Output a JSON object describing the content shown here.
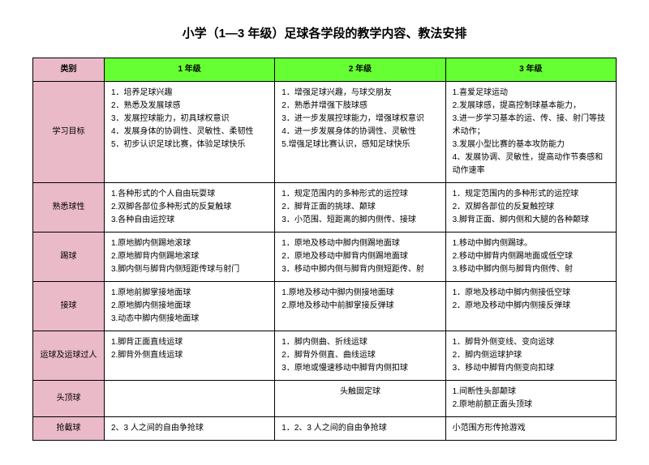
{
  "title": "小学（1—3 年级）足球各学段的教学内容、教法安排",
  "headers": {
    "category": "类别",
    "grade1": "1 年级",
    "grade2": "2 年级",
    "grade3": "3 年级"
  },
  "rows": {
    "goals": {
      "label": "学习目标",
      "g1": "1．培养足球兴趣\n2．熟悉及发展球感\n3．发展控球能力，初具球权意识\n4．发展身体的协调性、灵敏性、柔韧性\n5．初步认识足球比赛，体验足球快乐",
      "g2": "1．增强足球兴趣，与球交朋友\n2．熟悉并增强下肢球感\n3．进一步发展控球能力，增强球权意识\n4．进一步发展身体的协调性、灵敏性\n5.增强足球比赛认识，感知足球快乐",
      "g3": "1.喜爱足球运动\n2.发展球感，提高控制球基本能力，\n3.进一步学习基本的运、传、接、射门等技术动作；\n3.发展小型比赛的基本攻防能力\n4、发展协调、灵敏性，提高动作节奏感和动作速率"
    },
    "familiarity": {
      "label": "熟悉球性",
      "g1": "1.各种形式的个人自由玩耍球\n2.双脚各部位多种形式的反复触球\n3.各种自由运控球",
      "g2": "1．规定范围内的多种形式的运控球\n2．脚背正面的挑球、颠球\n3．小范围、短距离的脚内侧传、接球",
      "g3": "1．规定范围内的多种形式的运控球\n2．双脚各部位的反复触控球\n3.脚背正面、脚内侧和大腿的各种颠球"
    },
    "kick": {
      "label": "踢球",
      "g1": "1.原地脚内侧踢地滚球\n2.原地脚背内侧踢地滚球\n3.脚内侧与脚背内侧短距传球与射门",
      "g2": "1．原地及移动中脚内侧踢地面球\n2．原地及移动中脚背内侧踢地面球\n3．移动中脚内侧与脚背内侧短距传、射",
      "g3": "1.移动中脚内侧踢球。\n2.移动中脚背内侧踢地面或低空球\n3.移动中脚内侧与脚背内侧传、射"
    },
    "receive": {
      "label": "接球",
      "g1": "1.原地前脚掌接地面球\n2.原地脚内侧接地面球\n3.动态中脚内侧接地面球",
      "g2": "1.原地及移动中脚内侧接地面球\n2.原地及移动中前脚掌接反弹球",
      "g3": "1．原地及移动中脚内侧接低空球\n2．原地及移动中脚内侧接反弹球"
    },
    "dribble": {
      "label": "运球及运球过人",
      "g1": "1.脚背正面直线运球\n2.脚背外侧直线运球",
      "g2": "1．脚内侧曲、折线运球\n2．脚背外侧直、曲线运球\n3．原地或慢速移动中脚背内侧扣球",
      "g3": "1．脚背外侧变线、变向运球\n2．脚内侧运球护球\n3．移动中脚背内侧变向扣球"
    },
    "header": {
      "label": "头顶球",
      "g1": "",
      "g2": "头触固定球",
      "g3": "1.间断性头部颠球\n2.原地前额正面头顶球"
    },
    "tackle": {
      "label": "抢截球",
      "g1": "2、3 人之间的自由争抢球",
      "g2": "1．2、3 人之间的自由争抢球",
      "g3": "小范围方形传抢游戏"
    }
  }
}
